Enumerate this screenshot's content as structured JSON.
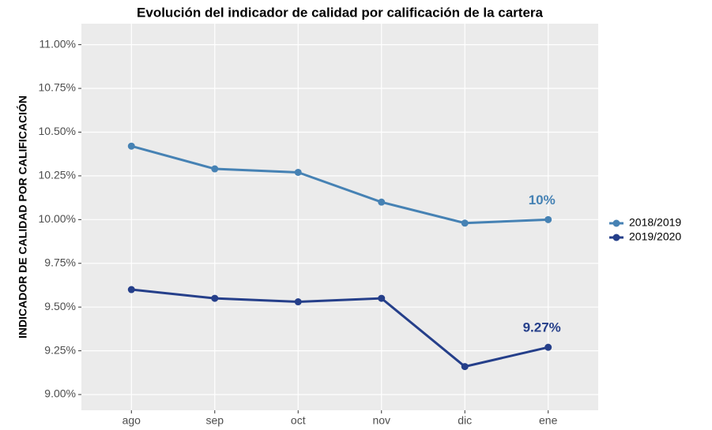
{
  "chart_data": {
    "type": "line",
    "title": "Evolución del indicador de calidad por calificación de la cartera",
    "y_label": "INDICADOR DE CALIDAD POR CALIFICACIÓN",
    "categories": [
      "ago",
      "sep",
      "oct",
      "nov",
      "dic",
      "ene"
    ],
    "series": [
      {
        "name": "2018/2019",
        "color": "#4682b4",
        "values": [
          10.42,
          10.29,
          10.27,
          10.1,
          9.98,
          10.0
        ],
        "value_labels": [
          null,
          null,
          null,
          null,
          null,
          "10%"
        ]
      },
      {
        "name": "2019/2020",
        "color": "#253f8a",
        "values": [
          9.6,
          9.55,
          9.53,
          9.55,
          9.16,
          9.27
        ],
        "value_labels": [
          null,
          null,
          null,
          null,
          null,
          "9.27%"
        ]
      }
    ],
    "ylim": [
      8.91,
      11.12
    ],
    "yticks": [
      {
        "value": 9,
        "label": "9.00%"
      },
      {
        "value": 9.25,
        "label": "9.25%"
      },
      {
        "value": 9.5,
        "label": "9.50%"
      },
      {
        "value": 9.75,
        "label": "9.75%"
      },
      {
        "value": 10,
        "label": "10.00%"
      },
      {
        "value": 10.25,
        "label": "10.25%"
      },
      {
        "value": 10.5,
        "label": "10.50%"
      },
      {
        "value": 10.75,
        "label": "10.75%"
      },
      {
        "value": 11,
        "label": "11.00%"
      }
    ],
    "grid": true,
    "legend": "right"
  }
}
